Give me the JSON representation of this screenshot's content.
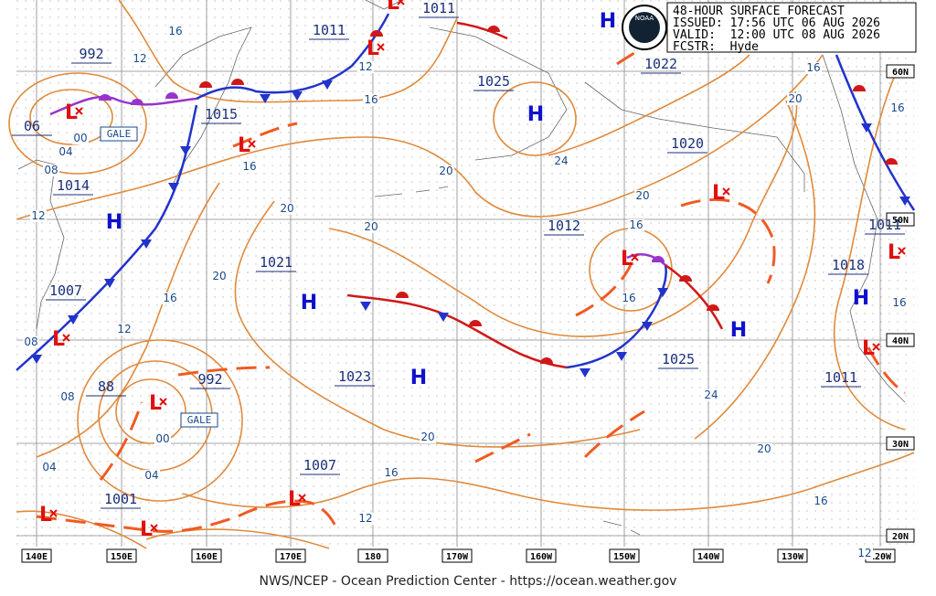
{
  "header": {
    "title": "48-HOUR SURFACE FORECAST",
    "issued": "ISSUED: 17:56 UTC 06 AUG 2026",
    "valid": "VALID:  12:00 UTC 08 AUG 2026",
    "forecaster": "FCSTR:  Hyde",
    "logo": "NOAA"
  },
  "lat_labels": [
    "60N",
    "50N",
    "40N",
    "30N",
    "20N"
  ],
  "lon_labels": [
    "140E",
    "150E",
    "160E",
    "170E",
    "180",
    "170W",
    "160W",
    "150W",
    "140W",
    "130W",
    "120W"
  ],
  "pressure_labels": [
    "1011",
    "1011",
    "992",
    "1025",
    "1015",
    "1022",
    "1020",
    "1014",
    "1012",
    "1021",
    "1011",
    "1018",
    "1007",
    "1025",
    "1023",
    "1011",
    "992",
    "1007",
    "1001",
    "06",
    "88"
  ],
  "highs": [
    "H",
    "H",
    "H",
    "H",
    "H",
    "H",
    "H"
  ],
  "lows": [
    "L",
    "L",
    "L",
    "L",
    "L",
    "L",
    "L",
    "L",
    "L",
    "L",
    "L",
    "L",
    "L"
  ],
  "isobar_labels": [
    "16",
    "12",
    "12",
    "16",
    "16",
    "00",
    "04",
    "08",
    "12",
    "20",
    "24",
    "20",
    "16",
    "20",
    "16",
    "16",
    "20",
    "20",
    "20",
    "16",
    "16",
    "12",
    "08",
    "08",
    "00",
    "04",
    "04",
    "24",
    "20",
    "20",
    "16",
    "16",
    "16",
    "12",
    "12"
  ],
  "gale_labels": [
    "GALE",
    "GALE"
  ],
  "footer": "NWS/NCEP - Ocean Prediction Center - https://ocean.weather.gov"
}
